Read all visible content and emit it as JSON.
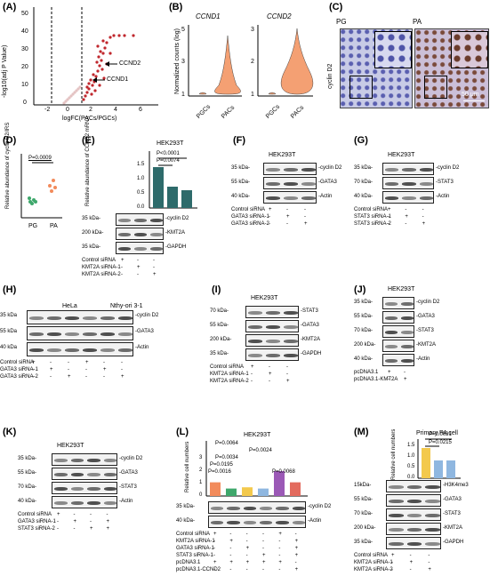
{
  "panels": {
    "A": "(A)",
    "B": "(B)",
    "C": "(C)",
    "D": "(D)",
    "E": "(E)",
    "F": "(F)",
    "G": "(G)",
    "H": "(H)",
    "I": "(I)",
    "J": "(J)",
    "K": "(K)",
    "L": "(L)",
    "M": "(M)"
  },
  "volcano": {
    "ylabel": "-log10(adj P Value)",
    "xlabel": "logFC(PACs/PGCs)",
    "yticks": [
      "0",
      "10",
      "20",
      "30",
      "40",
      "50"
    ],
    "xticks": [
      "-2",
      "0",
      "2",
      "4",
      "6"
    ],
    "genes": [
      "CCND2",
      "CCND1"
    ]
  },
  "violin": {
    "ylabel": "Normalized counts (log)",
    "left": {
      "gene": "CCND1",
      "yticks": [
        "1",
        "3",
        "5"
      ],
      "xticks": [
        "PGCs",
        "PACs"
      ]
    },
    "right": {
      "gene": "CCND2",
      "yticks": [
        "1",
        "2",
        "3"
      ],
      "xticks": [
        "PGCs",
        "PACs"
      ]
    }
  },
  "ihc": {
    "ylabel": "cyclin D2",
    "left": "PG",
    "right": "PA",
    "scale": "50 μm"
  },
  "D": {
    "ylabel": "Relative abundance of cyclin D2/IRS",
    "p": "P=0.0009",
    "xticks": [
      "PG",
      "PA"
    ]
  },
  "E": {
    "cell": "HEK293T",
    "ylabel": "Relative abundance of CCND2 mRNA",
    "p1": "P<0.0001",
    "p2": "P=0.0074",
    "yticks": [
      "0.0",
      "0.5",
      "1.0",
      "1.5"
    ],
    "bands": [
      "cyclin D2",
      "KMT2A",
      "GAPDH"
    ],
    "kda": [
      "35 kDa-",
      "200 kDa-",
      "35 kDa-"
    ],
    "rows": [
      "Control siRNA",
      "KMT2A siRNA-1",
      "KMT2A siRNA-2"
    ]
  },
  "F": {
    "cell": "HEK293T",
    "bands": [
      "cyclin D2",
      "GATA3",
      "Actin"
    ],
    "kda": [
      "35 kDa-",
      "55 kDa-",
      "40 kDa-"
    ],
    "rows": [
      "Control siRNA",
      "GATA3 siRNA-1",
      "GATA3 siRNA-2"
    ]
  },
  "G": {
    "cell": "HEK293T",
    "bands": [
      "cyclin D2",
      "STAT3",
      "Actin"
    ],
    "kda": [
      "35 kDa-",
      "70 kDa-",
      "40 kDa-"
    ],
    "rows": [
      "Control siRNA",
      "STAT3 siRNA-1",
      "STAT3 siRNA-2"
    ]
  },
  "H": {
    "cells": [
      "HeLa",
      "Nthy-ori 3-1"
    ],
    "bands": [
      "cyclin D2",
      "GATA3",
      "Actin"
    ],
    "kda": [
      "35 kDa",
      "55 kDa",
      "40 kDa"
    ],
    "rows": [
      "Control siRNA",
      "GATA3 siRNA-1",
      "GATA3 siRNA-2"
    ]
  },
  "I": {
    "cell": "HEK293T",
    "bands": [
      "STAT3",
      "GATA3",
      "KMT2A",
      "GAPDH"
    ],
    "kda": [
      "70 kDa-",
      "55 kDa-",
      "200 kDa-",
      "35 kDa-"
    ],
    "rows": [
      "Control siRNA",
      "KMT2A siRNA-1",
      "KMT2A siRNA-2"
    ]
  },
  "J": {
    "cell": "HEK293T",
    "bands": [
      "cyclin D2",
      "GATA3",
      "STAT3",
      "KMT2A",
      "Actin"
    ],
    "kda": [
      "35 kDa-",
      "55 kDa-",
      "70 kDa-",
      "200 kDa-",
      "40 kDa-"
    ],
    "rows": [
      "pcDNA3.1",
      "pcDNA3.1-KMT2A"
    ]
  },
  "K": {
    "cell": "HEK293T",
    "bands": [
      "cyclin D2",
      "GATA3",
      "STAT3",
      "Actin"
    ],
    "kda": [
      "35 kDa-",
      "55 kDa-",
      "70 kDa-",
      "40 kDa-"
    ],
    "rows": [
      "Control siRNA",
      "GATA3 siRNA-1",
      "STAT3 siRNA-2"
    ]
  },
  "L": {
    "cell": "HEK293T",
    "ylabel": "Relative cell numbers",
    "yticks": [
      "0",
      "1",
      "2",
      "3"
    ],
    "p": [
      "P=0.0064",
      "P=0.0024",
      "P=0.0034",
      "P=0.0195",
      "P=0.0068",
      "P=0.0016"
    ],
    "bands": [
      "cyclin D2",
      "Actin"
    ],
    "kda": [
      "35 kDa-",
      "40 kDa-"
    ],
    "rows": [
      "Control siRNA",
      "KMT2A siRNA-1",
      "GATA3 siRNA-1",
      "STAT3 siRNA-1",
      "pcDNA3.1",
      "pcDNA3.1-CCND2"
    ]
  },
  "M": {
    "cell": "Primary PA cell",
    "ylabel": "Relative cell numbers",
    "yticks": [
      "0.0",
      "0.5",
      "1.0",
      "1.5"
    ],
    "p": [
      "P=0.0031",
      "P=0.0215"
    ],
    "bands": [
      "H3K4me3",
      "GATA3",
      "STAT3",
      "KMT2A",
      "GAPDH"
    ],
    "kda": [
      "15kDa-",
      "55 kDa-",
      "70 kDa-",
      "200 kDa-",
      "35 kDa-"
    ],
    "rows": [
      "Control siRNA",
      "KMT2A siRNA-1",
      "KMT2A siRNA-2"
    ]
  },
  "signs": {
    "plus": "+",
    "minus": "-"
  },
  "colors": {
    "volcano_up": "#c0272d",
    "violin": "#f4a073",
    "bar_orange": "#f28b5b",
    "bar_green": "#3fa86c",
    "bar_yellow": "#f3c94d",
    "bar_blue": "#8fb7e0",
    "bar_purple": "#9b59b6",
    "bar_red": "#e36b5e"
  }
}
